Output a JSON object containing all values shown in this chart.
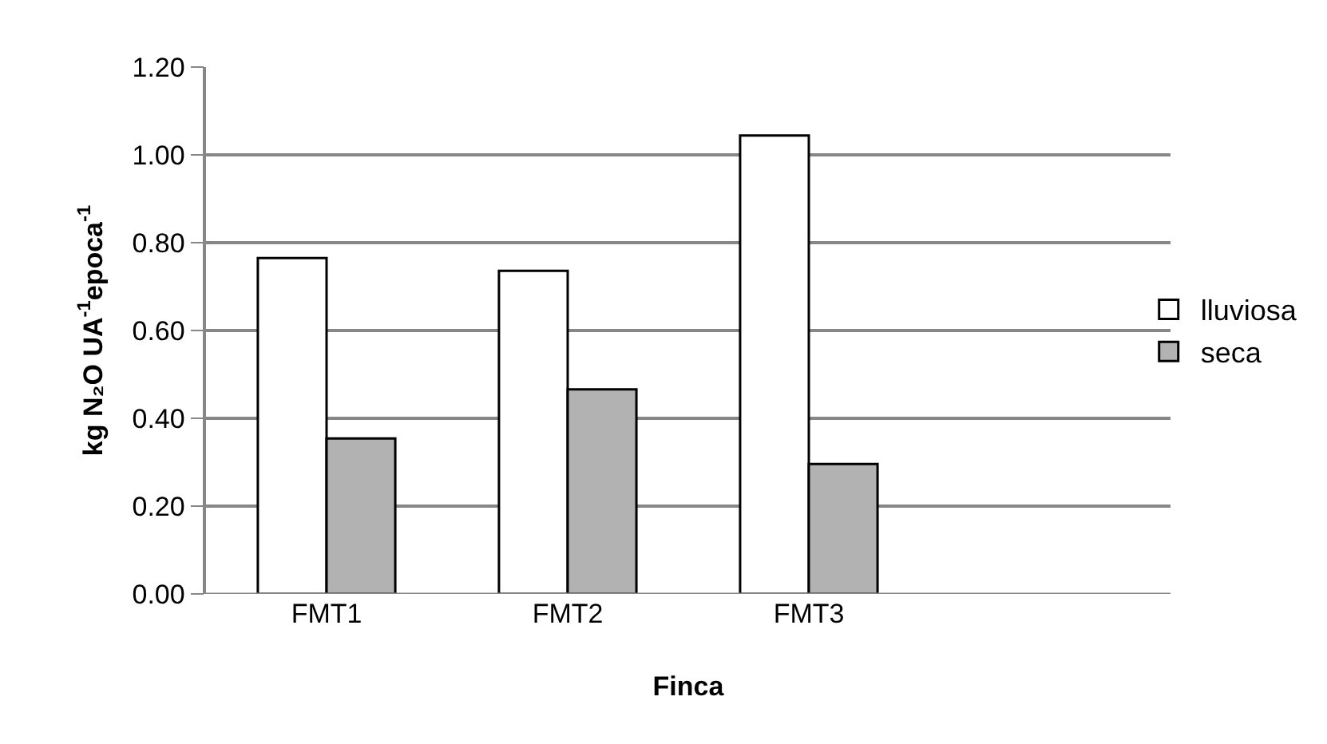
{
  "chart_data": {
    "type": "bar",
    "xlabel": "Finca",
    "ylabel": "kg N₂O UA$^{-1}$epoca$^{-1}$",
    "categories": [
      "FMT1",
      "FMT2",
      "FMT3"
    ],
    "series": [
      {
        "name": "lluviosa",
        "color": "#ffffff",
        "values": [
          0.765,
          0.736,
          1.044
        ]
      },
      {
        "name": "seca",
        "color": "#b2b2b2",
        "values": [
          0.354,
          0.466,
          0.296
        ]
      }
    ],
    "ylim": [
      0,
      1.2
    ],
    "yticks": [
      {
        "value": 0,
        "label": "0.00"
      },
      {
        "value": 0.2,
        "label": "0.20"
      },
      {
        "value": 0.4,
        "label": "0.40"
      },
      {
        "value": 0.6,
        "label": "0.60"
      },
      {
        "value": 0.8,
        "label": "0.80"
      },
      {
        "value": 1,
        "label": "1.00"
      },
      {
        "value": 1.2,
        "label": "1.20"
      }
    ],
    "grid": "y",
    "legend": "right"
  }
}
